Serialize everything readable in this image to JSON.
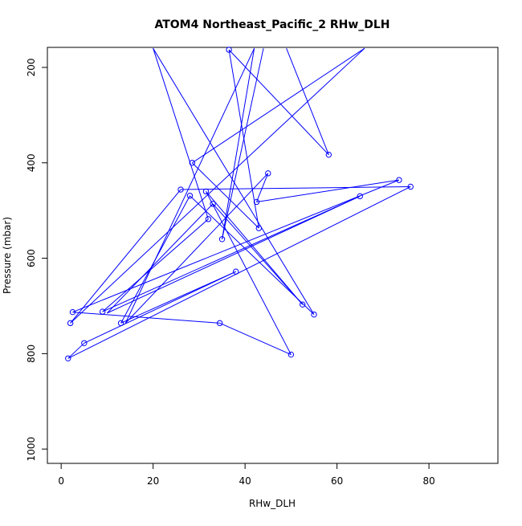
{
  "chart_data": {
    "type": "line",
    "title": "ATOM4 Northeast_Pacific_2 RHw_DLH",
    "xlabel": "RHw_DLH",
    "ylabel": "Pressure (mbar)",
    "xlim": [
      -3,
      95
    ],
    "ylim": [
      1030,
      158
    ],
    "y_reversed": true,
    "x_ticks": [
      0,
      20,
      40,
      60,
      80
    ],
    "y_ticks": [
      200,
      400,
      600,
      800,
      1000
    ],
    "grid": false,
    "legend": "none",
    "colors": {
      "series": "#0000ff",
      "axis": "#000000"
    },
    "series": [
      {
        "marker": "open-circle",
        "x": [
          49,
          58.2,
          36.5,
          43,
          28.5,
          66,
          2,
          26,
          76,
          1.5,
          5,
          38,
          13,
          28,
          55,
          20,
          32,
          9,
          65,
          10,
          33,
          52.5,
          31.5,
          50,
          34.5,
          2.5,
          73.5,
          42.5,
          45,
          14,
          42,
          35,
          44
        ],
        "y": [
          160,
          383,
          163,
          537,
          400,
          160,
          736,
          456,
          450,
          810,
          778,
          628,
          736,
          469,
          718,
          160,
          518,
          712,
          470,
          715,
          486,
          697,
          460,
          802,
          736,
          713,
          436,
          482,
          422,
          736,
          160,
          560,
          160
        ],
        "point_flags": [
          0,
          1,
          1,
          1,
          1,
          0,
          1,
          1,
          1,
          1,
          1,
          1,
          1,
          1,
          1,
          0,
          1,
          1,
          1,
          0,
          1,
          1,
          1,
          1,
          1,
          1,
          1,
          1,
          1,
          0,
          0,
          1,
          0
        ]
      }
    ]
  }
}
